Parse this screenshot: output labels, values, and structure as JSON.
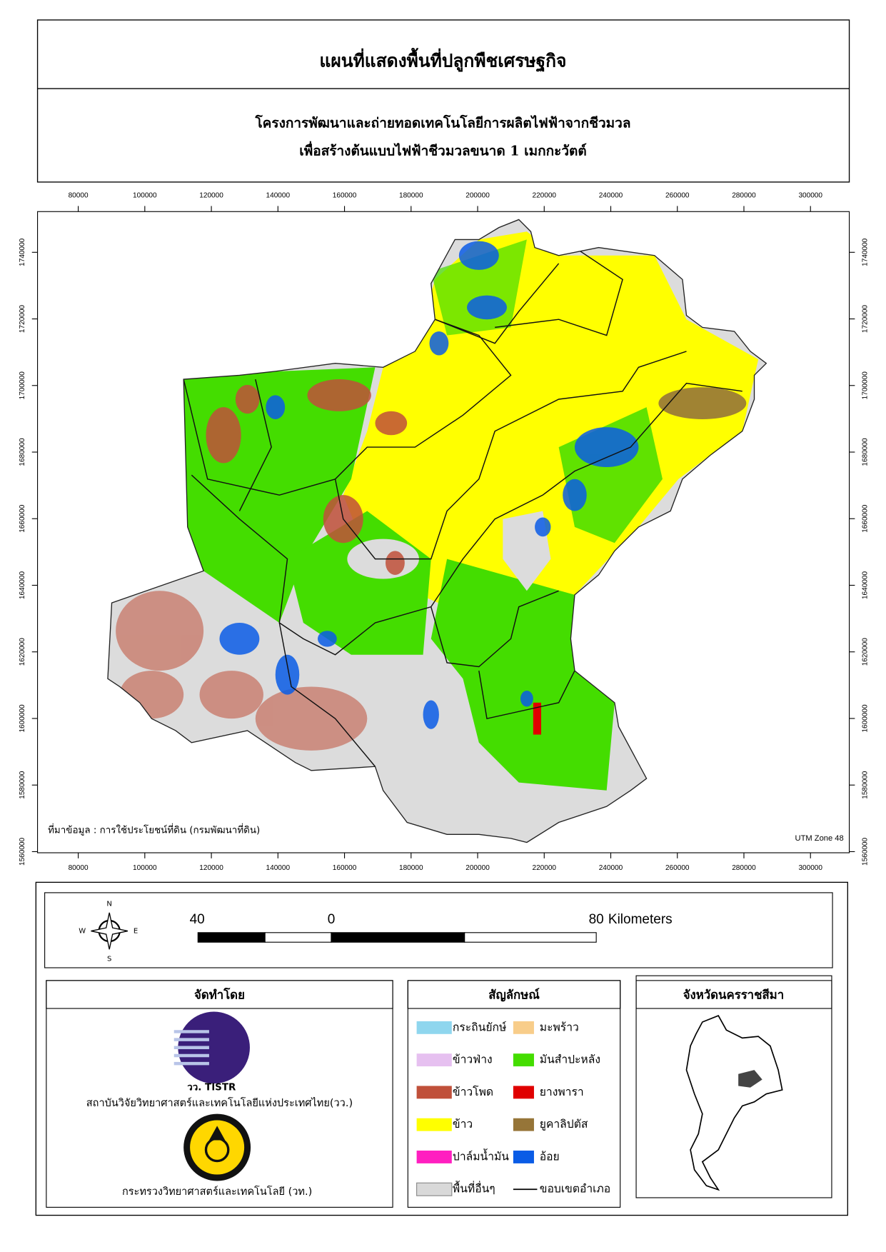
{
  "title": "แผนที่แสดงพื้นที่ปลูกพืชเศรษฐกิจ",
  "subtitle": [
    "โครงการพัฒนาและถ่ายทอดเทคโนโลยีการผลิตไฟฟ้าจากชีวมวล",
    "เพื่อสร้างต้นแบบไฟฟ้าชีวมวลขนาด 1 เมกกะวัตต์"
  ],
  "map": {
    "xticks": [
      80000,
      100000,
      120000,
      140000,
      160000,
      180000,
      200000,
      220000,
      240000,
      260000,
      280000,
      300000
    ],
    "yticks": [
      1560000,
      1580000,
      1600000,
      1620000,
      1640000,
      1660000,
      1680000,
      1700000,
      1720000,
      1740000
    ],
    "source_note": "ที่มาข้อมูล : การใช้ประโยชน์ที่ดิน  (กรมพัฒนาที่ดิน)",
    "projection_note": "UTM Zone 48"
  },
  "scale_bar": {
    "labels": [
      40,
      0,
      80
    ],
    "unit": "Kilometers"
  },
  "compass": {
    "north": "N",
    "east": "E",
    "south": "S",
    "west": "W"
  },
  "producer": {
    "title": "จัดทำโดย",
    "logo_text": "วว. TISTR",
    "organizations": [
      "สถาบันวิจัยวิทยาศาสตร์และเทคโนโลยีแห่งประเทศไทย(วว.)",
      "กระทรวงวิทยาศาสตร์และเทคโนโลยี (วท.)"
    ]
  },
  "legend": {
    "title": "สัญลักษณ์",
    "items": [
      {
        "name": "กระถินยักษ์",
        "color": "#8fd6ee"
      },
      {
        "name": "ข้าวฟ่าง",
        "color": "#e6c0f0"
      },
      {
        "name": "ข้าวโพด",
        "color": "#c0503a"
      },
      {
        "name": "ข้าว",
        "color": "#ffff00"
      },
      {
        "name": "ปาล์มน้ำมัน",
        "color": "#ff1fc0"
      },
      {
        "name": "พื้นที่อื่นๆ",
        "color": "#d9d9d9"
      },
      {
        "name": "มะพร้าว",
        "color": "#f8cd8a"
      },
      {
        "name": "มันสำปะหลัง",
        "color": "#44dd00"
      },
      {
        "name": "ยางพารา",
        "color": "#e00000"
      },
      {
        "name": "ยูคาลิปตัส",
        "color": "#967538"
      },
      {
        "name": "อ้อย",
        "color": "#0a5ce6"
      },
      {
        "name": "ขอบเขตอำเภอ",
        "color": "#000000",
        "symbol": "line"
      }
    ]
  },
  "inset": {
    "title": "จังหวัดนครราชสีมา"
  }
}
